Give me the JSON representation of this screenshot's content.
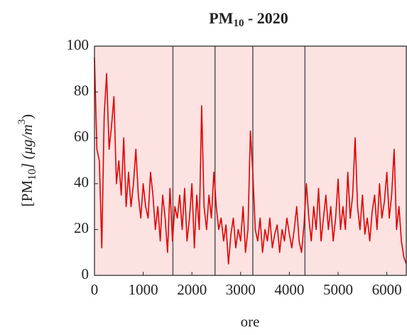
{
  "chart_data": {
    "type": "line",
    "title": {
      "main": "PM",
      "sub": "10",
      "rest": " - 2020"
    },
    "ylabel": {
      "a": "[PM",
      "sub": "10",
      "b": "] (μg/m",
      "sup": "3",
      "c": ")"
    },
    "xlabel": "ore",
    "x": [
      0,
      50,
      100,
      150,
      200,
      250,
      300,
      350,
      400,
      450,
      500,
      550,
      600,
      650,
      700,
      750,
      800,
      850,
      900,
      950,
      1000,
      1050,
      1100,
      1150,
      1200,
      1250,
      1300,
      1350,
      1400,
      1450,
      1500,
      1550,
      1600,
      1650,
      1700,
      1750,
      1800,
      1850,
      1900,
      1950,
      2000,
      2050,
      2100,
      2150,
      2200,
      2250,
      2300,
      2350,
      2400,
      2450,
      2500,
      2550,
      2600,
      2650,
      2700,
      2750,
      2800,
      2850,
      2900,
      2950,
      3000,
      3050,
      3100,
      3150,
      3200,
      3250,
      3300,
      3350,
      3400,
      3450,
      3500,
      3550,
      3600,
      3650,
      3700,
      3750,
      3800,
      3850,
      3900,
      3950,
      4000,
      4050,
      4100,
      4150,
      4200,
      4250,
      4300,
      4350,
      4400,
      4450,
      4500,
      4550,
      4600,
      4650,
      4700,
      4750,
      4800,
      4850,
      4900,
      4950,
      5000,
      5050,
      5100,
      5150,
      5200,
      5250,
      5300,
      5350,
      5400,
      5450,
      5500,
      5550,
      5600,
      5650,
      5700,
      5750,
      5800,
      5850,
      5900,
      5950,
      6000,
      6050,
      6100,
      6150,
      6200,
      6250,
      6300,
      6350,
      6400
    ],
    "series": [
      {
        "name": "PM10",
        "color": "#e00000",
        "values": [
          95,
          55,
          50,
          12,
          70,
          88,
          55,
          65,
          78,
          40,
          50,
          35,
          60,
          30,
          45,
          30,
          40,
          55,
          35,
          25,
          40,
          30,
          25,
          45,
          35,
          20,
          30,
          15,
          35,
          25,
          10,
          38,
          15,
          30,
          25,
          35,
          20,
          38,
          15,
          25,
          40,
          12,
          35,
          20,
          74,
          30,
          20,
          35,
          25,
          45,
          30,
          20,
          25,
          15,
          22,
          5,
          18,
          25,
          12,
          20,
          15,
          30,
          10,
          20,
          63,
          45,
          20,
          15,
          25,
          10,
          20,
          15,
          25,
          12,
          18,
          22,
          10,
          20,
          15,
          25,
          18,
          12,
          20,
          30,
          15,
          10,
          22,
          40,
          25,
          15,
          30,
          20,
          38,
          15,
          25,
          35,
          20,
          30,
          15,
          25,
          42,
          20,
          30,
          20,
          45,
          25,
          35,
          60,
          30,
          20,
          35,
          18,
          25,
          15,
          28,
          35,
          20,
          40,
          25,
          32,
          45,
          25,
          35,
          55,
          20,
          30,
          15,
          8,
          5
        ]
      }
    ],
    "vlines": [
      1610,
      2474,
      3250,
      4320
    ],
    "xlim": [
      0,
      6400
    ],
    "ylim": [
      0,
      100
    ],
    "xticks": [
      0,
      1000,
      2000,
      3000,
      4000,
      5000,
      6000
    ],
    "yticks": [
      0,
      20,
      40,
      60,
      80,
      100
    ],
    "background": "#fde2e2"
  }
}
